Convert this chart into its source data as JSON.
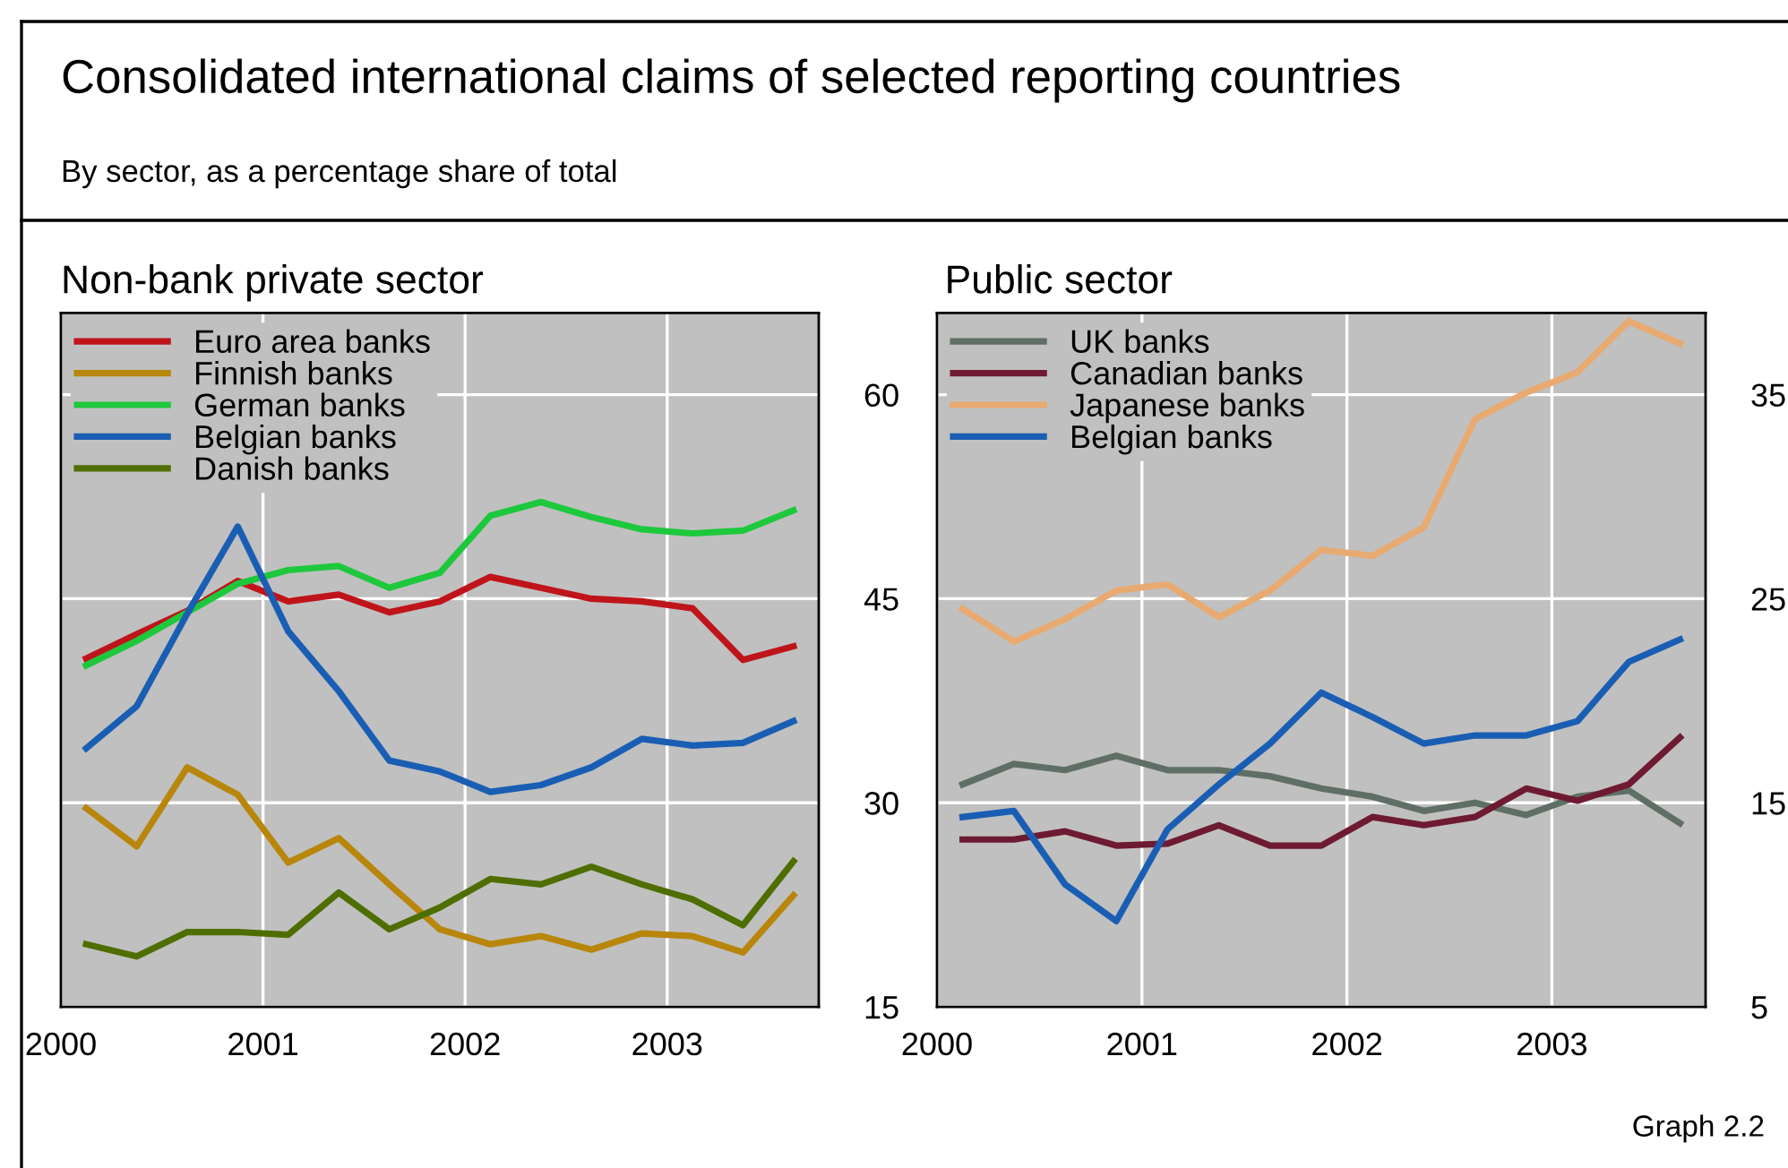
{
  "chart_data": [
    {
      "type": "line",
      "title": "Non-bank private sector",
      "annotations": [
        "Consolidated international claims of selected reporting countries",
        "By sector, as a percentage share of total"
      ],
      "x": [
        2000.125,
        2000.375,
        2000.625,
        2000.875,
        2001.125,
        2001.375,
        2001.625,
        2001.875,
        2002.125,
        2002.375,
        2002.625,
        2002.875,
        2003.125,
        2003.375,
        2003.625
      ],
      "xlim": [
        2000,
        2003.75
      ],
      "xticks": [
        2000,
        2001,
        2002,
        2003
      ],
      "ylim": [
        15,
        66
      ],
      "yticks": [
        15,
        30,
        45,
        60
      ],
      "grid": true,
      "legend": "top left",
      "series": [
        {
          "name": "Euro area banks",
          "color": "#c0141b",
          "values": [
            40.6,
            42.4,
            44.1,
            46.3,
            44.8,
            45.3,
            44.0,
            44.8,
            46.6,
            45.8,
            45.0,
            44.8,
            44.3,
            40.5,
            41.5
          ]
        },
        {
          "name": "Finnish banks",
          "color": "#b8860b",
          "values": [
            29.6,
            26.8,
            32.6,
            30.6,
            25.6,
            27.4,
            24.0,
            20.7,
            19.6,
            20.2,
            19.2,
            20.4,
            20.2,
            19.0,
            23.2
          ]
        },
        {
          "name": "German banks",
          "color": "#1ec83c",
          "values": [
            40.1,
            41.9,
            44.0,
            46.1,
            47.1,
            47.4,
            45.8,
            46.9,
            51.1,
            52.1,
            51.0,
            50.1,
            49.8,
            50.0,
            51.5
          ]
        },
        {
          "name": "Belgian banks",
          "color": "#1a5eb4",
          "values": [
            34.0,
            37.1,
            43.9,
            50.3,
            42.6,
            38.2,
            33.1,
            32.3,
            30.8,
            31.3,
            32.6,
            34.7,
            34.2,
            34.4,
            36.0
          ]
        },
        {
          "name": "Danish banks",
          "color": "#4f6e00",
          "values": [
            19.6,
            18.7,
            20.5,
            20.5,
            20.3,
            23.4,
            20.7,
            22.3,
            24.4,
            24.0,
            25.3,
            24.0,
            22.9,
            21.0,
            25.7
          ]
        }
      ]
    },
    {
      "type": "line",
      "title": "Public sector",
      "annotations": [
        "Graph 2.2"
      ],
      "x": [
        2000.125,
        2000.375,
        2000.625,
        2000.875,
        2001.125,
        2001.375,
        2001.625,
        2001.875,
        2002.125,
        2002.375,
        2002.625,
        2002.875,
        2003.125,
        2003.375,
        2003.625
      ],
      "xlim": [
        2000,
        2003.75
      ],
      "xticks": [
        2000,
        2001,
        2002,
        2003
      ],
      "ylim": [
        5,
        39
      ],
      "yticks": [
        5,
        15,
        25,
        35
      ],
      "grid": true,
      "legend": "top left",
      "series": [
        {
          "name": "UK banks",
          "color": "#5f6f66",
          "values": [
            15.9,
            16.9,
            16.6,
            17.3,
            16.6,
            16.6,
            16.3,
            15.7,
            15.3,
            14.6,
            15.0,
            14.4,
            15.3,
            15.6,
            14.0
          ]
        },
        {
          "name": "Canadian banks",
          "color": "#6e1a32",
          "values": [
            13.2,
            13.2,
            13.6,
            12.9,
            13.0,
            13.9,
            12.9,
            12.9,
            14.3,
            13.9,
            14.3,
            15.7,
            15.1,
            15.9,
            18.2
          ]
        },
        {
          "name": "Japanese banks",
          "color": "#e8aa70",
          "values": [
            24.5,
            22.9,
            24.0,
            25.4,
            25.7,
            24.1,
            25.4,
            27.4,
            27.1,
            28.5,
            33.8,
            35.1,
            36.1,
            38.6,
            37.5
          ]
        },
        {
          "name": "Belgian banks",
          "color": "#1a5eb4",
          "values": [
            14.3,
            14.6,
            11.0,
            9.2,
            13.7,
            15.9,
            17.9,
            20.4,
            19.2,
            17.9,
            18.3,
            18.3,
            19.0,
            21.9,
            23.0
          ]
        }
      ]
    }
  ]
}
